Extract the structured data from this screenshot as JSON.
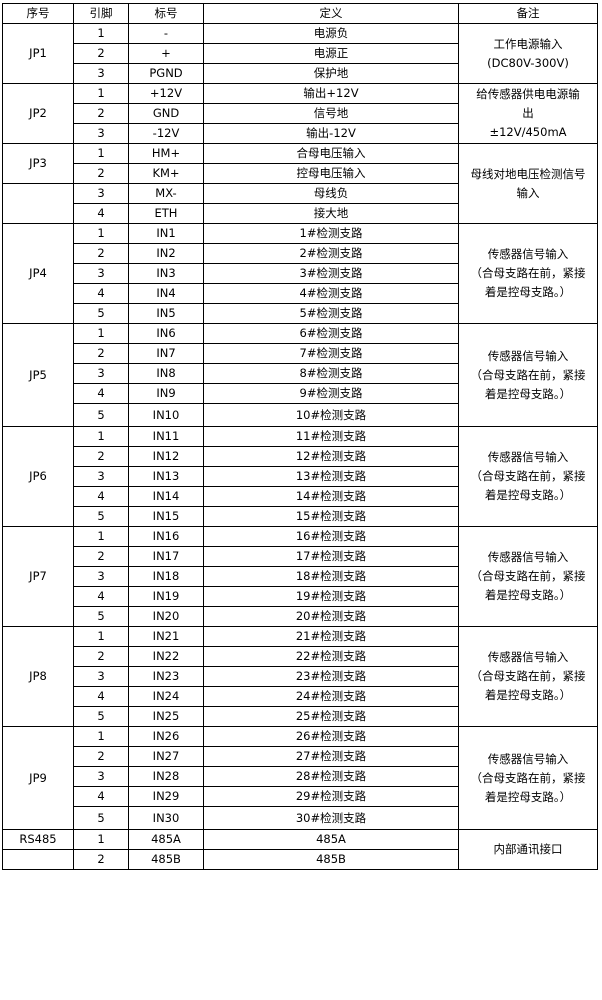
{
  "headers": [
    "序号",
    "引脚",
    "标号",
    "定义",
    "备注"
  ],
  "groups": [
    {
      "id_cells": [
        {
          "text": "JP1",
          "rows": 3
        }
      ],
      "pins": [
        [
          "1",
          "-",
          "电源负"
        ],
        [
          "2",
          "+",
          "电源正"
        ],
        [
          "3",
          "PGND",
          "保护地"
        ]
      ],
      "remark": [
        "工作电源输入",
        "(DC80V-300V)"
      ]
    },
    {
      "id_cells": [
        {
          "text": "JP2",
          "rows": 3
        }
      ],
      "pins": [
        [
          "1",
          "+12V",
          "输出+12V"
        ],
        [
          "2",
          "GND",
          "信号地"
        ],
        [
          "3",
          "-12V",
          "输出-12V"
        ]
      ],
      "remark": [
        "给传感器供电电源输",
        "出",
        "±12V/450mA"
      ]
    },
    {
      "id_cells": [
        {
          "text": "JP3",
          "rows": 2
        },
        {
          "text": "",
          "rows": 2
        }
      ],
      "pins": [
        [
          "1",
          "HM+",
          "合母电压输入"
        ],
        [
          "2",
          "KM+",
          "控母电压输入"
        ],
        [
          "3",
          "MX-",
          "母线负"
        ],
        [
          "4",
          "ETH",
          "接大地"
        ]
      ],
      "remark": [
        "母线对地电压检测信号",
        "输入"
      ]
    },
    {
      "id_cells": [
        {
          "text": "JP4",
          "rows": 5
        }
      ],
      "pins": [
        [
          "1",
          "IN1",
          "1#检测支路"
        ],
        [
          "2",
          "IN2",
          "2#检测支路"
        ],
        [
          "3",
          "IN3",
          "3#检测支路"
        ],
        [
          "4",
          "IN4",
          "4#检测支路"
        ],
        [
          "5",
          "IN5",
          "5#检测支路"
        ]
      ],
      "remark": [
        "传感器信号输入",
        "（合母支路在前，紧接",
        "着是控母支路。）"
      ]
    },
    {
      "id_cells": [
        {
          "text": "JP5",
          "rows": 5
        }
      ],
      "pins": [
        [
          "1",
          "IN6",
          "6#检测支路"
        ],
        [
          "2",
          "IN7",
          "7#检测支路"
        ],
        [
          "3",
          "IN8",
          "8#检测支路"
        ],
        [
          "4",
          "IN9",
          "9#检测支路"
        ],
        [
          "5",
          "IN10",
          "10#检测支路"
        ]
      ],
      "remark": [
        "传感器信号输入",
        "（合母支路在前，紧接",
        "着是控母支路。）"
      ]
    },
    {
      "id_cells": [
        {
          "text": "JP6",
          "rows": 5
        }
      ],
      "pins": [
        [
          "1",
          "IN11",
          "11#检测支路"
        ],
        [
          "2",
          "IN12",
          "12#检测支路"
        ],
        [
          "3",
          "IN13",
          "13#检测支路"
        ],
        [
          "4",
          "IN14",
          "14#检测支路"
        ],
        [
          "5",
          "IN15",
          "15#检测支路"
        ]
      ],
      "remark": [
        "传感器信号输入",
        "（合母支路在前，紧接",
        "着是控母支路。）"
      ]
    },
    {
      "id_cells": [
        {
          "text": "JP7",
          "rows": 5
        }
      ],
      "pins": [
        [
          "1",
          "IN16",
          "16#检测支路"
        ],
        [
          "2",
          "IN17",
          "17#检测支路"
        ],
        [
          "3",
          "IN18",
          "18#检测支路"
        ],
        [
          "4",
          "IN19",
          "19#检测支路"
        ],
        [
          "5",
          "IN20",
          "20#检测支路"
        ]
      ],
      "remark": [
        "传感器信号输入",
        "（合母支路在前，紧接",
        "着是控母支路。）"
      ]
    },
    {
      "id_cells": [
        {
          "text": "JP8",
          "rows": 5
        }
      ],
      "pins": [
        [
          "1",
          "IN21",
          "21#检测支路"
        ],
        [
          "2",
          "IN22",
          "22#检测支路"
        ],
        [
          "3",
          "IN23",
          "23#检测支路"
        ],
        [
          "4",
          "IN24",
          "24#检测支路"
        ],
        [
          "5",
          "IN25",
          "25#检测支路"
        ]
      ],
      "remark": [
        "传感器信号输入",
        "（合母支路在前，紧接",
        "着是控母支路。）"
      ]
    },
    {
      "id_cells": [
        {
          "text": "JP9",
          "rows": 5
        }
      ],
      "pins": [
        [
          "1",
          "IN26",
          "26#检测支路"
        ],
        [
          "2",
          "IN27",
          "27#检测支路"
        ],
        [
          "3",
          "IN28",
          "28#检测支路"
        ],
        [
          "4",
          "IN29",
          "29#检测支路"
        ],
        [
          "5",
          "IN30",
          "30#检测支路"
        ]
      ],
      "remark": [
        "传感器信号输入",
        "（合母支路在前，紧接",
        "着是控母支路。）"
      ]
    },
    {
      "id_cells": [
        {
          "text": "RS485",
          "rows": 1
        },
        {
          "text": "",
          "rows": 1
        }
      ],
      "pins": [
        [
          "1",
          "485A",
          "485A"
        ],
        [
          "2",
          "485B",
          "485B"
        ]
      ],
      "remark": [
        "内部通讯接口"
      ]
    }
  ]
}
